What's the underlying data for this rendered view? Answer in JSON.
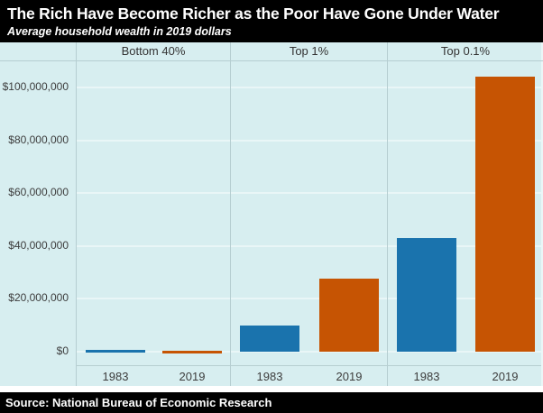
{
  "header": {
    "title": "The Rich Have Become Richer as the Poor Have Gone Under Water",
    "subtitle": "Average household wealth in 2019 dollars"
  },
  "footer": {
    "source": "Source: National Bureau of Economic Research"
  },
  "colors": {
    "title_bg": "#000000",
    "title_fg": "#ffffff",
    "chart_bg": "#d7eef0",
    "grid": "#e9f6f7",
    "divider": "#b6ced1",
    "tick_text": "#3d3d3d",
    "bar_1983": "#1a73ad",
    "bar_2019": "#c65403"
  },
  "chart_data": {
    "type": "bar",
    "title": "The Rich Have Become Richer as the Poor Have Gone Under Water",
    "subtitle": "Average household wealth in 2019 dollars",
    "facets": true,
    "categories": [
      "1983",
      "2019"
    ],
    "panels": [
      {
        "label": "Bottom 40%",
        "values": [
          7000,
          -11000
        ]
      },
      {
        "label": "Top 1%",
        "values": [
          10000000,
          27500000
        ]
      },
      {
        "label": "Top 0.1%",
        "values": [
          43000000,
          104000000
        ]
      }
    ],
    "series_colors": {
      "1983": "#1a73ad",
      "2019": "#c65403"
    },
    "y_axis": {
      "ticks": [
        {
          "value": 0,
          "label": "$0"
        },
        {
          "value": 20000000,
          "label": "$20,000,000"
        },
        {
          "value": 40000000,
          "label": "$40,000,000"
        },
        {
          "value": 60000000,
          "label": "$60,000,000"
        },
        {
          "value": 80000000,
          "label": "$80,000,000"
        },
        {
          "value": 100000000,
          "label": "$100,000,000"
        }
      ],
      "range": [
        0,
        105000000
      ]
    },
    "grid": true,
    "legend": "none",
    "source": "National Bureau of Economic Research"
  }
}
